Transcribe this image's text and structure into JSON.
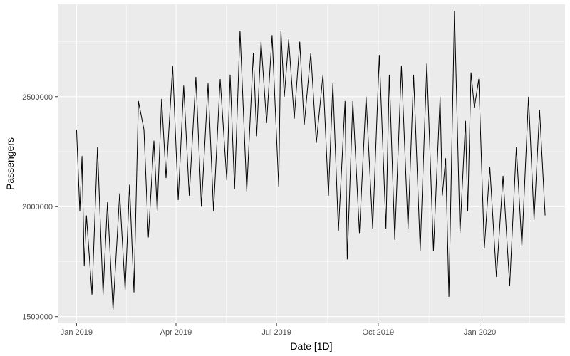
{
  "chart_data": {
    "type": "line",
    "xlabel": "Date [1D]",
    "ylabel": "Passengers",
    "x_range": [
      "2019-01-01",
      "2020-03-01"
    ],
    "ylim": [
      1470000,
      2920000
    ],
    "y_ticks": [
      1500000,
      2000000,
      2500000
    ],
    "y_tick_labels": [
      "1500000",
      "2000000",
      "2500000"
    ],
    "x_ticks": [
      "2019-01-01",
      "2019-04-01",
      "2019-07-01",
      "2019-10-01",
      "2020-01-01"
    ],
    "x_tick_labels": [
      "Jan 2019",
      "Apr 2019",
      "Jul 2019",
      "Oct 2019",
      "Jan 2020"
    ],
    "grid": true,
    "colors": {
      "panel": "#ebebeb",
      "grid": "#ffffff",
      "line": "#000000"
    },
    "series": [
      {
        "frequency": "daily",
        "x": [
          "2019-01-01",
          "2019-01-04",
          "2019-01-06",
          "2019-01-08",
          "2019-01-10",
          "2019-01-15",
          "2019-01-20",
          "2019-01-25",
          "2019-01-29",
          "2019-02-03",
          "2019-02-09",
          "2019-02-14",
          "2019-02-18",
          "2019-02-22",
          "2019-02-26",
          "2019-03-03",
          "2019-03-07",
          "2019-03-12",
          "2019-03-15",
          "2019-03-19",
          "2019-03-23",
          "2019-03-29",
          "2019-04-03",
          "2019-04-08",
          "2019-04-13",
          "2019-04-19",
          "2019-04-24",
          "2019-04-30",
          "2019-05-05",
          "2019-05-11",
          "2019-05-17",
          "2019-05-20",
          "2019-05-24",
          "2019-05-29",
          "2019-06-04",
          "2019-06-10",
          "2019-06-13",
          "2019-06-17",
          "2019-06-22",
          "2019-06-27",
          "2019-07-03",
          "2019-07-05",
          "2019-07-08",
          "2019-07-12",
          "2019-07-17",
          "2019-07-22",
          "2019-07-26",
          "2019-08-01",
          "2019-08-06",
          "2019-08-12",
          "2019-08-17",
          "2019-08-21",
          "2019-08-26",
          "2019-09-01",
          "2019-09-03",
          "2019-09-08",
          "2019-09-14",
          "2019-09-20",
          "2019-09-26",
          "2019-10-02",
          "2019-10-08",
          "2019-10-11",
          "2019-10-16",
          "2019-10-22",
          "2019-10-28",
          "2019-11-02",
          "2019-11-08",
          "2019-11-14",
          "2019-11-20",
          "2019-11-26",
          "2019-11-28",
          "2019-12-01",
          "2019-12-04",
          "2019-12-09",
          "2019-12-14",
          "2019-12-19",
          "2019-12-21",
          "2019-12-24",
          "2019-12-27",
          "2019-12-31",
          "2020-01-05",
          "2020-01-10",
          "2020-01-16",
          "2020-01-22",
          "2020-01-28",
          "2020-02-03",
          "2020-02-08",
          "2020-02-14",
          "2020-02-19",
          "2020-02-24",
          "2020-02-29"
        ],
        "values": [
          2350000,
          1980000,
          2230000,
          1730000,
          1960000,
          1600000,
          2270000,
          1600000,
          2020000,
          1530000,
          2060000,
          1620000,
          2100000,
          1610000,
          2480000,
          2350000,
          1860000,
          2300000,
          1980000,
          2490000,
          2130000,
          2640000,
          2030000,
          2550000,
          2050000,
          2590000,
          2000000,
          2560000,
          1980000,
          2580000,
          2120000,
          2600000,
          2080000,
          2800000,
          2070000,
          2700000,
          2320000,
          2750000,
          2380000,
          2780000,
          2090000,
          2800000,
          2500000,
          2760000,
          2400000,
          2750000,
          2370000,
          2700000,
          2290000,
          2600000,
          2050000,
          2560000,
          1890000,
          2480000,
          1760000,
          2480000,
          1880000,
          2500000,
          1900000,
          2690000,
          1900000,
          2600000,
          1850000,
          2640000,
          1900000,
          2600000,
          1800000,
          2650000,
          1800000,
          2500000,
          2050000,
          2220000,
          1590000,
          2890000,
          1880000,
          2390000,
          1980000,
          2610000,
          2450000,
          2580000,
          1810000,
          2180000,
          1680000,
          2140000,
          1640000,
          2270000,
          1820000,
          2500000,
          1940000,
          2440000,
          1960000
        ]
      }
    ]
  }
}
